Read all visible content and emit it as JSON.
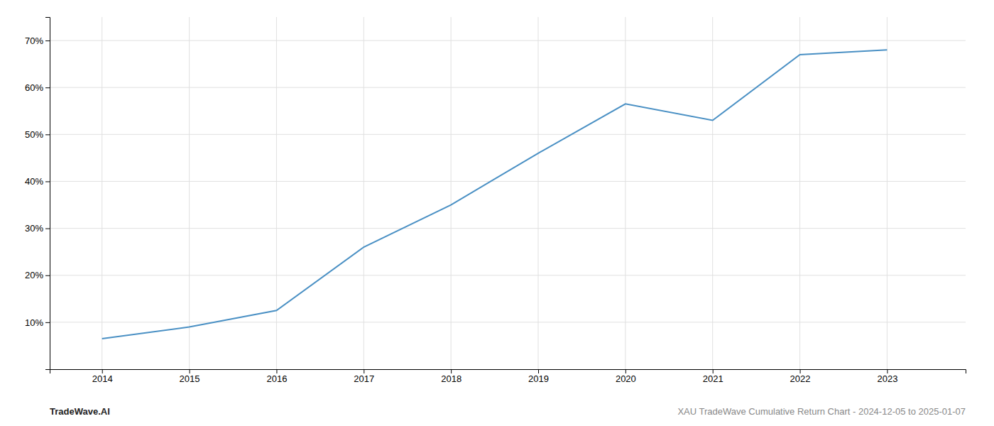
{
  "chart_data": {
    "type": "line",
    "x": [
      2014,
      2015,
      2016,
      2017,
      2018,
      2019,
      2020,
      2021,
      2022,
      2023
    ],
    "values": [
      6.5,
      9.0,
      12.5,
      26.0,
      35.0,
      46.0,
      56.5,
      53.0,
      67.0,
      68.0
    ],
    "color": "#4a90c4",
    "xlim": [
      2013.4,
      2023.9
    ],
    "xticks": [
      2014,
      2015,
      2016,
      2017,
      2018,
      2019,
      2020,
      2021,
      2022,
      2023
    ],
    "ylim": [
      0,
      75
    ],
    "yticks": [
      {
        "value": 10,
        "label": "10%"
      },
      {
        "value": 20,
        "label": "20%"
      },
      {
        "value": 30,
        "label": "30%"
      },
      {
        "value": 40,
        "label": "40%"
      },
      {
        "value": 50,
        "label": "50%"
      },
      {
        "value": 60,
        "label": "60%"
      },
      {
        "value": 70,
        "label": "70%"
      }
    ],
    "grid": true,
    "annotations": [
      "TradeWave.AI",
      "XAU TradeWave Cumulative Return Chart - 2024-12-05 to 2025-01-07"
    ]
  }
}
